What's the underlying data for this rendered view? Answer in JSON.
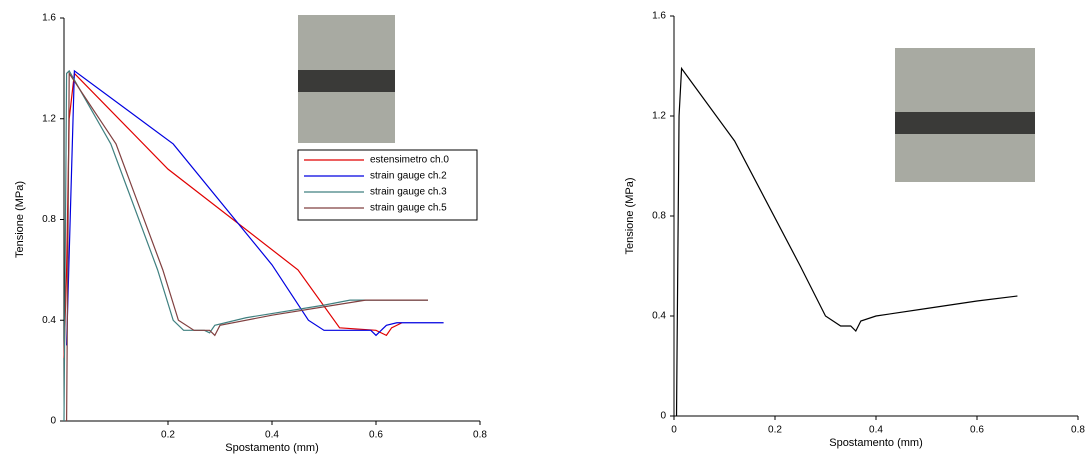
{
  "chart_data": [
    {
      "type": "line",
      "xlabel": "Spostamento (mm)",
      "ylabel": "Tensione (MPa)",
      "xlim": [
        0,
        0.8
      ],
      "ylim": [
        0,
        1.6
      ],
      "xticks": [
        0.2,
        0.4,
        0.6,
        0.8
      ],
      "yticks": [
        0,
        0.4,
        0.8,
        1.2,
        1.6
      ],
      "series": [
        {
          "name": "estensimetro ch.0",
          "color": "#e00000",
          "x": [
            0,
            0.005,
            0.01,
            0.02,
            0.2,
            0.45,
            0.53,
            0.6,
            0.62,
            0.63,
            0.65
          ],
          "values": [
            0.25,
            0.6,
            1.2,
            1.38,
            1.0,
            0.6,
            0.37,
            0.36,
            0.34,
            0.37,
            0.39
          ]
        },
        {
          "name": "strain gauge ch.2",
          "color": "#0000e0",
          "x": [
            0.005,
            0.02,
            0.21,
            0.4,
            0.47,
            0.5,
            0.59,
            0.6,
            0.62,
            0.64,
            0.73
          ],
          "values": [
            0.3,
            1.39,
            1.1,
            0.62,
            0.4,
            0.36,
            0.36,
            0.34,
            0.38,
            0.39,
            0.39
          ]
        },
        {
          "name": "strain gauge ch.3",
          "color": "#408080",
          "x": [
            0,
            0.005,
            0.01,
            0.09,
            0.18,
            0.21,
            0.23,
            0.27,
            0.28,
            0.29,
            0.35,
            0.5,
            0.55,
            0.7
          ],
          "values": [
            0,
            1.38,
            1.39,
            1.1,
            0.6,
            0.4,
            0.36,
            0.36,
            0.35,
            0.38,
            0.41,
            0.46,
            0.48,
            0.48
          ]
        },
        {
          "name": "strain gauge ch.5",
          "color": "#804040",
          "x": [
            0.005,
            0.01,
            0.1,
            0.19,
            0.22,
            0.25,
            0.28,
            0.29,
            0.3,
            0.4,
            0.55,
            0.58,
            0.7
          ],
          "values": [
            0,
            1.38,
            1.1,
            0.6,
            0.4,
            0.36,
            0.36,
            0.34,
            0.38,
            0.42,
            0.47,
            0.48,
            0.48
          ]
        }
      ]
    },
    {
      "type": "line",
      "xlabel": "Spostamento (mm)",
      "ylabel": "Tensione (MPa)",
      "xlim": [
        0,
        0.8
      ],
      "ylim": [
        0,
        1.6
      ],
      "xticks": [
        0,
        0.2,
        0.4,
        0.6,
        0.8
      ],
      "yticks": [
        0,
        0.4,
        0.8,
        1.2,
        1.6
      ],
      "series": [
        {
          "name": null,
          "color": "#000000",
          "x": [
            0.005,
            0.006,
            0.01,
            0.015,
            0.12,
            0.25,
            0.3,
            0.33,
            0.35,
            0.36,
            0.37,
            0.4,
            0.5,
            0.6,
            0.68
          ],
          "values": [
            0,
            0.25,
            1.2,
            1.39,
            1.1,
            0.6,
            0.4,
            0.36,
            0.36,
            0.34,
            0.38,
            0.4,
            0.43,
            0.46,
            0.48
          ]
        }
      ]
    }
  ]
}
